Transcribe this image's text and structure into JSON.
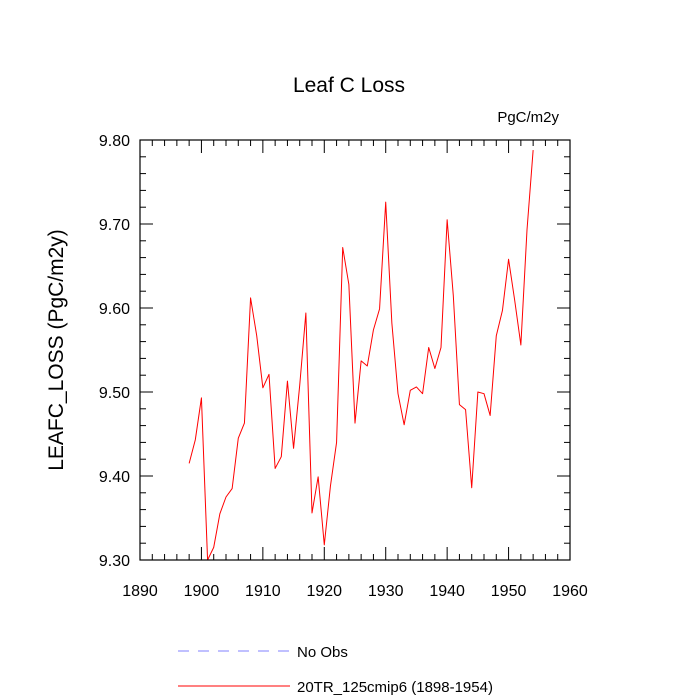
{
  "chart_data": {
    "type": "line",
    "title": "Leaf C Loss",
    "units_label": "PgC/m2y",
    "ylabel": "LEAFC_LOSS  (PgC/m2y)",
    "xlabel": "",
    "xlim": [
      1890,
      1960
    ],
    "ylim": [
      9.3,
      9.8
    ],
    "x_ticks": [
      1890,
      1900,
      1910,
      1920,
      1930,
      1940,
      1950,
      1960
    ],
    "x_tick_labels": [
      "1890",
      "1900",
      "1910",
      "1920",
      "1930",
      "1940",
      "1950",
      "1960"
    ],
    "y_ticks": [
      9.3,
      9.4,
      9.5,
      9.6,
      9.7,
      9.8
    ],
    "y_tick_labels": [
      "9.30",
      "9.40",
      "9.50",
      "9.60",
      "9.70",
      "9.80"
    ],
    "grid": false,
    "series": [
      {
        "name": "20TR_125cmip6 (1898-1954)",
        "color": "#ff0000",
        "style": "solid",
        "x": [
          1898,
          1899,
          1900,
          1901,
          1902,
          1903,
          1904,
          1905,
          1906,
          1907,
          1908,
          1909,
          1910,
          1911,
          1912,
          1913,
          1914,
          1915,
          1916,
          1917,
          1918,
          1919,
          1920,
          1921,
          1922,
          1923,
          1924,
          1925,
          1926,
          1927,
          1928,
          1929,
          1930,
          1931,
          1932,
          1933,
          1934,
          1935,
          1936,
          1937,
          1938,
          1939,
          1940,
          1941,
          1942,
          1943,
          1944,
          1945,
          1946,
          1947,
          1948,
          1949,
          1950,
          1951,
          1952,
          1953,
          1954
        ],
        "values": [
          9.415,
          9.443,
          9.493,
          9.3,
          9.315,
          9.355,
          9.375,
          9.385,
          9.445,
          9.463,
          9.612,
          9.567,
          9.505,
          9.521,
          9.409,
          9.423,
          9.513,
          9.433,
          9.508,
          9.594,
          9.356,
          9.399,
          9.318,
          9.388,
          9.44,
          9.672,
          9.628,
          9.463,
          9.537,
          9.531,
          9.574,
          9.599,
          9.726,
          9.582,
          9.498,
          9.461,
          9.502,
          9.506,
          9.498,
          9.553,
          9.528,
          9.553,
          9.705,
          9.615,
          9.485,
          9.479,
          9.386,
          9.5,
          9.498,
          9.472,
          9.567,
          9.597,
          9.658,
          9.609,
          9.556,
          9.693,
          9.788
        ]
      }
    ],
    "legend": {
      "placement": "bottom",
      "entries": [
        {
          "label": "No Obs",
          "color": "#8080ff",
          "style": "dashed"
        },
        {
          "label": "20TR_125cmip6 (1898-1954)",
          "color": "#ff0000",
          "style": "solid"
        }
      ]
    }
  }
}
